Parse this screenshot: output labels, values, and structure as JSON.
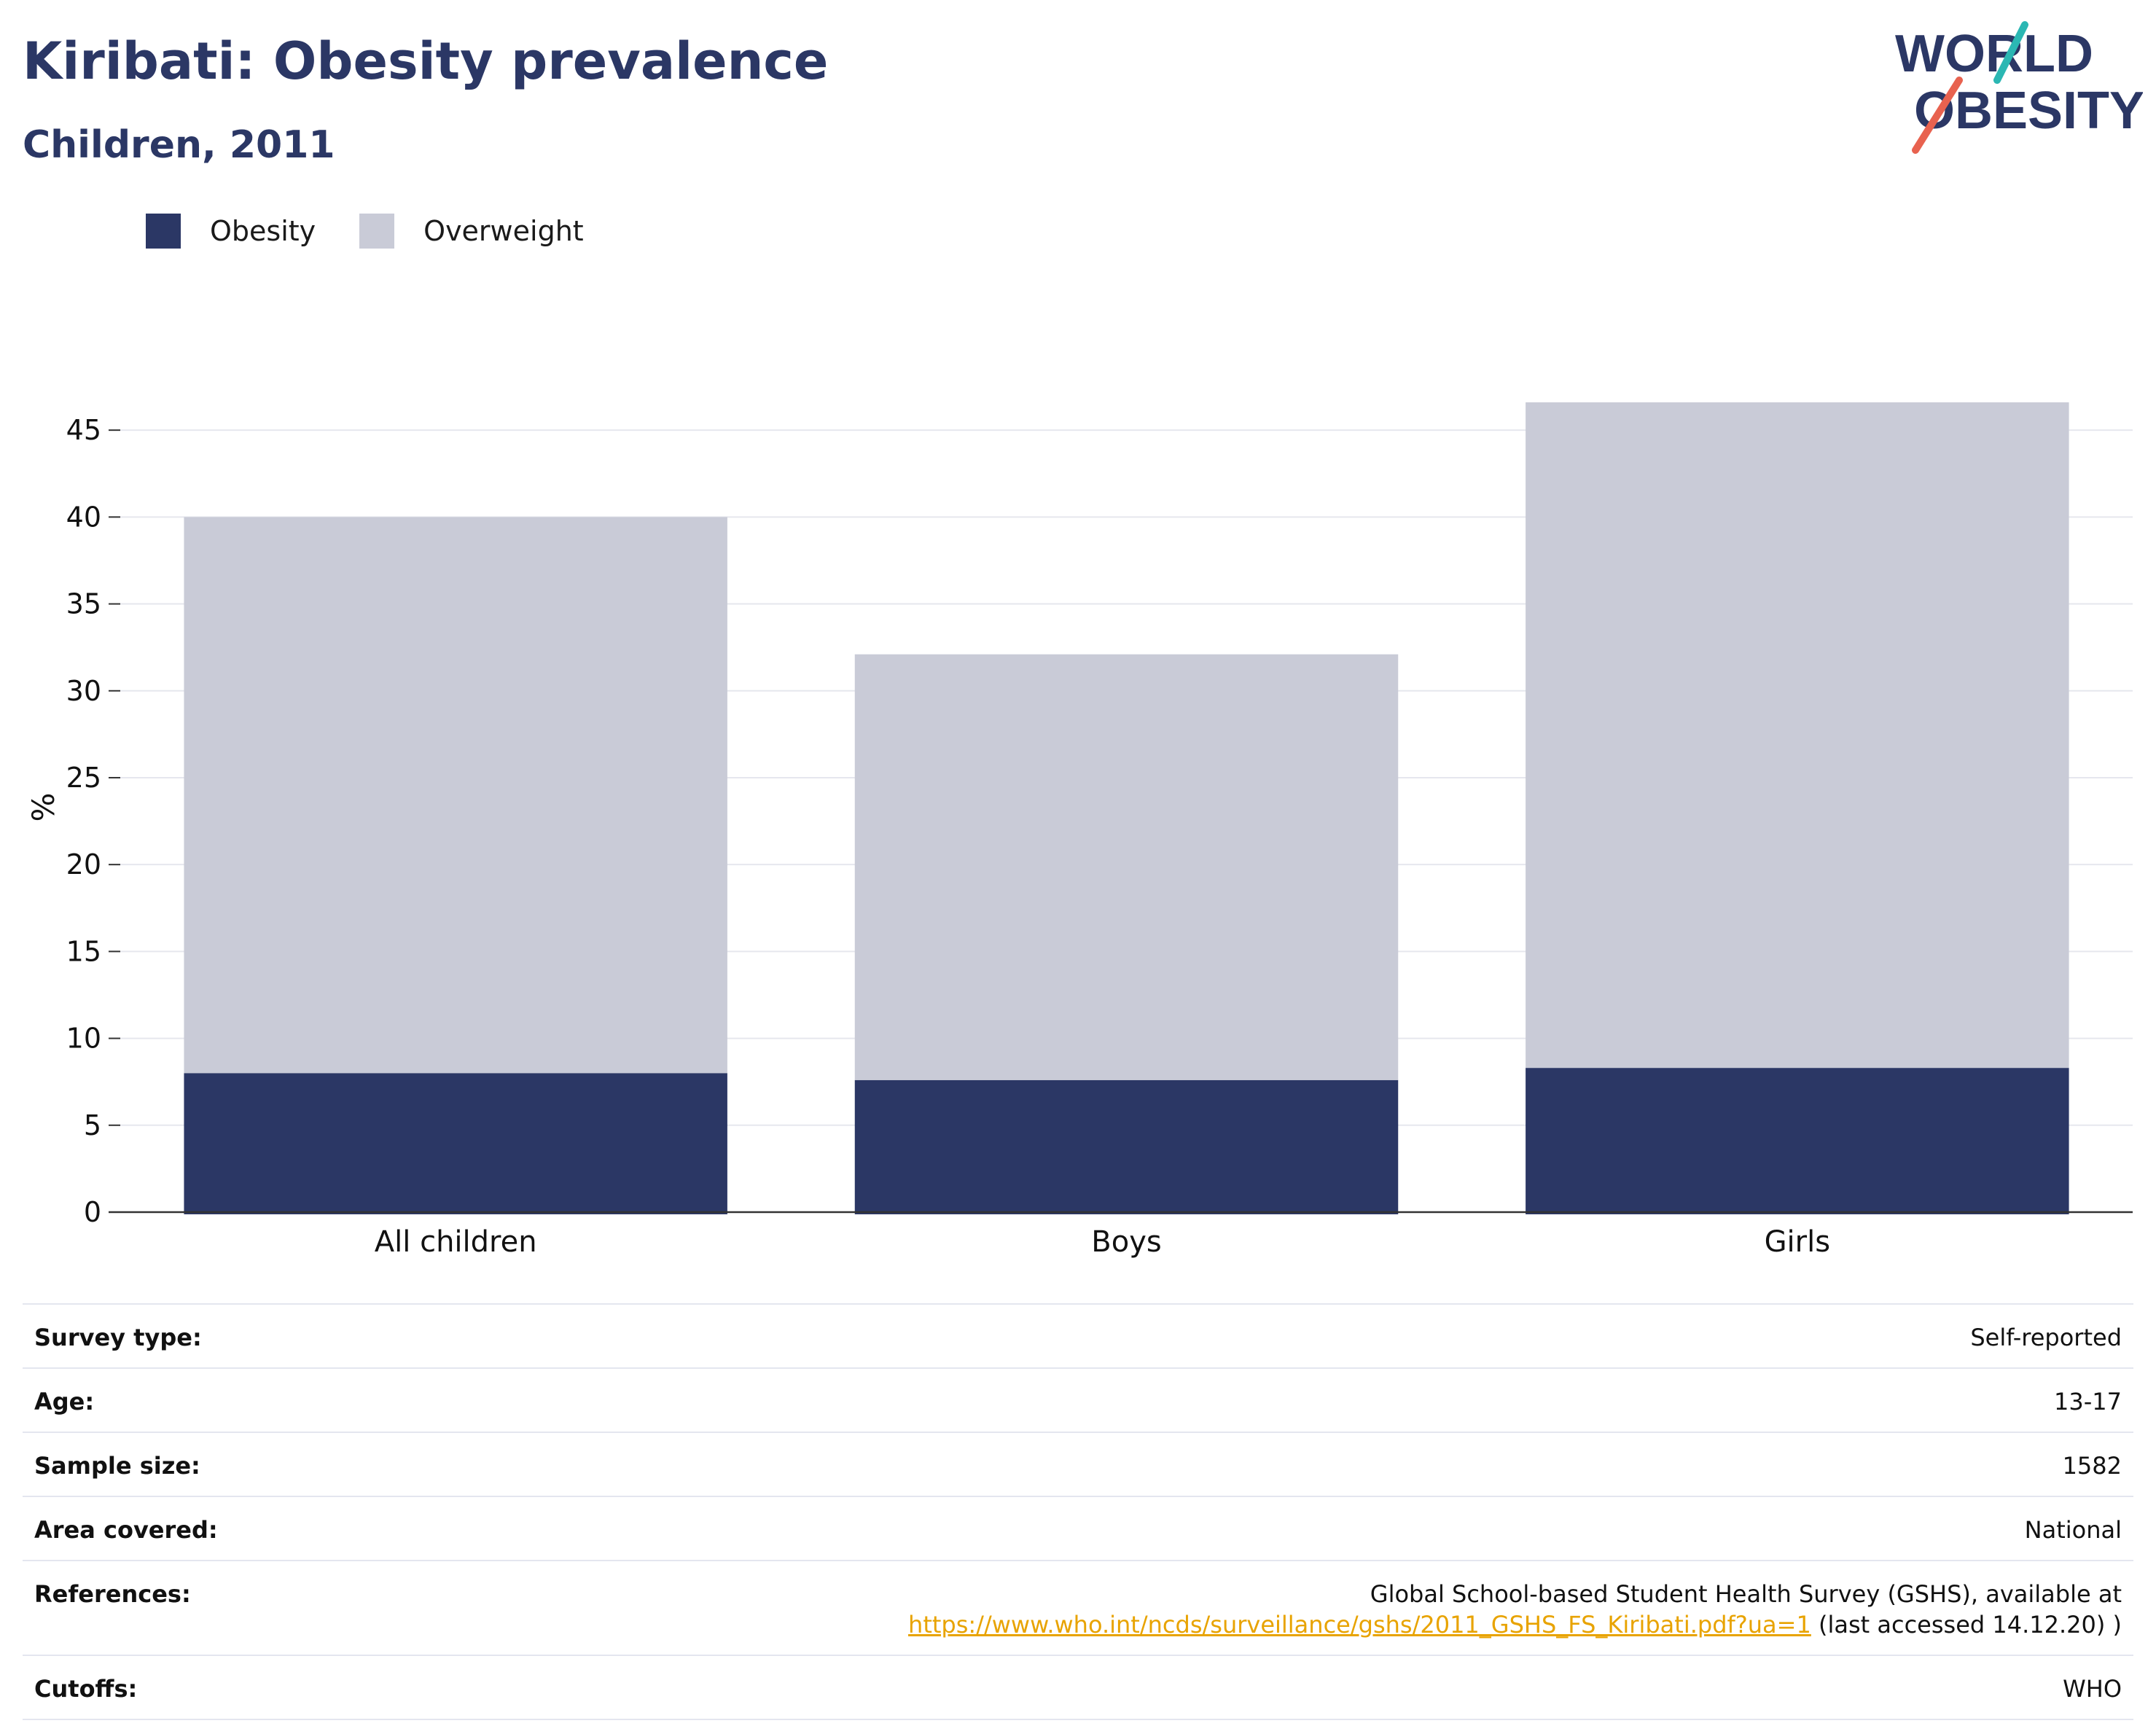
{
  "header": {
    "title": "Kiribati: Obesity prevalence",
    "subtitle": "Children, 2011"
  },
  "logo": {
    "line1": "WORLD",
    "line2": "OBESITY",
    "accent_colors": [
      "#2bb7b3",
      "#e8624f"
    ]
  },
  "legend": {
    "items": [
      {
        "label": "Obesity",
        "color": "#2b3765"
      },
      {
        "label": "Overweight",
        "color": "#c9cbd7"
      }
    ]
  },
  "chart_data": {
    "type": "bar",
    "stacked": true,
    "categories": [
      "All children",
      "Boys",
      "Girls"
    ],
    "series": [
      {
        "name": "Obesity",
        "color": "#2b3765",
        "values": [
          8.0,
          7.6,
          8.3
        ]
      },
      {
        "name": "Overweight",
        "color": "#c9cbd7",
        "values": [
          32.0,
          24.5,
          38.3
        ]
      }
    ],
    "ylabel": "%",
    "ylim": [
      0,
      46.6
    ],
    "yticks": [
      0,
      5,
      10,
      15,
      20,
      25,
      30,
      35,
      40,
      45
    ],
    "grid": true,
    "legend_position": "top-left"
  },
  "details": {
    "survey_type": {
      "label": "Survey type:",
      "value": "Self-reported"
    },
    "age": {
      "label": "Age:",
      "value": "13-17"
    },
    "sample_size": {
      "label": "Sample size:",
      "value": "1582"
    },
    "area": {
      "label": "Area covered:",
      "value": "National"
    },
    "references": {
      "label": "References:",
      "text_before": "Global School-based Student Health Survey (GSHS), available at",
      "link": "https://www.who.int/ncds/surveillance/gshs/2011_GSHS_FS_Kiribati.pdf?ua=1",
      "text_after": " (last accessed 14.12.20) )"
    },
    "cutoffs": {
      "label": "Cutoffs:",
      "value": "WHO"
    }
  }
}
